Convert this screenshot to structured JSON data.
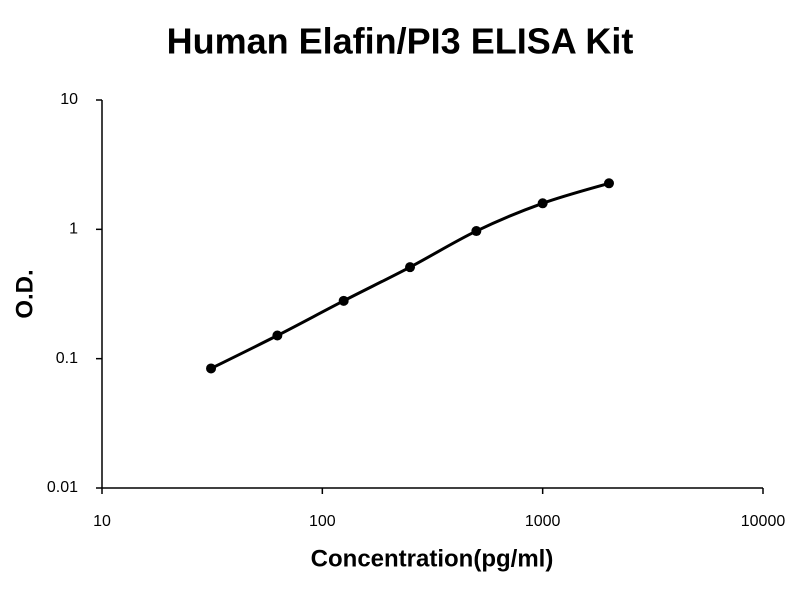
{
  "chart_data": {
    "type": "scatter",
    "title": "Human Elafin/PI3 ELISA Kit",
    "x_label": "Concentration(pg/ml)",
    "y_label": "O.D.",
    "x": [
      31.25,
      62.5,
      125,
      250,
      500,
      1000,
      2000
    ],
    "values": [
      0.084,
      0.151,
      0.28,
      0.51,
      0.97,
      1.59,
      2.27
    ],
    "color": "#000000",
    "line": true,
    "xlog": true,
    "ylog": true,
    "xlim": [
      10,
      10000
    ],
    "ylim": [
      0.01,
      10
    ],
    "xticks": [
      10,
      100,
      1000,
      10000
    ],
    "yticks": [
      0.01,
      0.1,
      1,
      10
    ]
  }
}
